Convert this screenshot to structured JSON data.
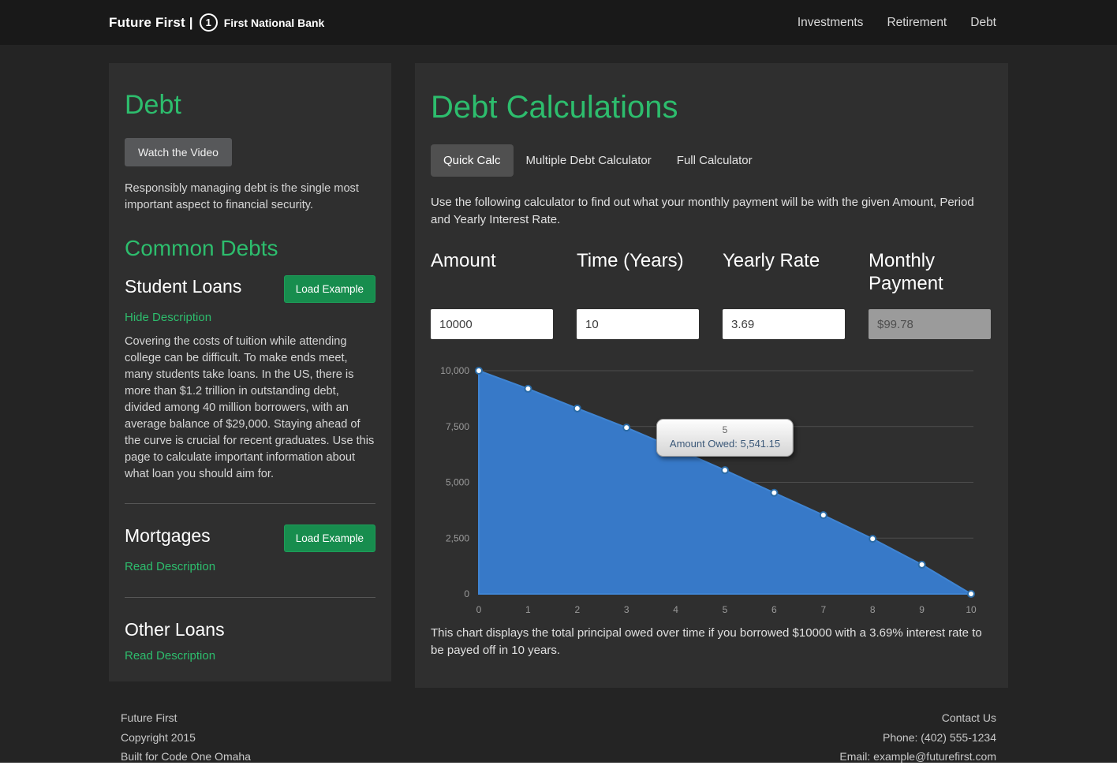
{
  "nav": {
    "brand_text": "Future First |",
    "logo_number": "1",
    "bank_name": "First National Bank",
    "items": [
      {
        "label": "Investments"
      },
      {
        "label": "Retirement"
      },
      {
        "label": "Debt"
      }
    ]
  },
  "sidebar": {
    "title": "Debt",
    "watch_video": "Watch the Video",
    "intro": "Responsibly managing debt is the single most important aspect to financial security.",
    "common_debts": "Common Debts",
    "student_loans": {
      "title": "Student Loans",
      "load_example": "Load Example",
      "toggle": "Hide Description",
      "description": "Covering the costs of tuition while attending college can be difficult. To make ends meet, many students take loans. In the US, there is more than $1.2 trillion in outstanding debt, divided among 40 million borrowers, with an average balance of $29,000. Staying ahead of the curve is crucial for recent graduates. Use this page to calculate important information about what loan you should aim for."
    },
    "mortgages": {
      "title": "Mortgages",
      "load_example": "Load Example",
      "toggle": "Read Description"
    },
    "other_loans": {
      "title": "Other Loans",
      "toggle": "Read Description"
    }
  },
  "main": {
    "title": "Debt Calculations",
    "tabs": [
      {
        "label": "Quick Calc",
        "active": true
      },
      {
        "label": "Multiple Debt Calculator",
        "active": false
      },
      {
        "label": "Full Calculator",
        "active": false
      }
    ],
    "instructions": "Use the following calculator to find out what your monthly payment will be with the given Amount, Period and Yearly Interest Rate.",
    "fields": {
      "amount": {
        "label": "Amount",
        "value": "10000"
      },
      "time": {
        "label": "Time (Years)",
        "value": "10"
      },
      "rate": {
        "label": "Yearly Rate",
        "value": "3.69"
      },
      "payment": {
        "label": "Monthly Payment",
        "value": "$99.78"
      }
    },
    "caption": "This chart displays the total principal owed over time if you borrowed $10000 with a 3.69% interest rate to be payed off in 10 years."
  },
  "chart_data": {
    "type": "area",
    "title": "",
    "xlabel": "",
    "ylabel": "",
    "x": [
      0,
      1,
      2,
      3,
      4,
      5,
      6,
      7,
      8,
      9,
      10
    ],
    "series": [
      {
        "name": "Amount Owed",
        "values": [
          10000,
          9190,
          8310,
          7450,
          6510,
          5541.15,
          4530,
          3530,
          2470,
          1310,
          0
        ]
      }
    ],
    "ylim": [
      0,
      10000
    ],
    "xlim": [
      0,
      10
    ],
    "yticks": [
      0,
      2500,
      5000,
      7500,
      10000
    ],
    "ytick_labels": [
      "0",
      "2,500",
      "5,000",
      "7,500",
      "10,000"
    ],
    "xtick_labels": [
      "0",
      "1",
      "2",
      "3",
      "4",
      "5",
      "6",
      "7",
      "8",
      "9",
      "10"
    ],
    "grid": true,
    "legend": "none",
    "fill_color": "#3779c8",
    "line_color": "#3f84d2",
    "point_fill": "#ffffff",
    "point_stroke": "#2b6ca8",
    "tooltip": {
      "title": "5",
      "text": "Amount Owed: 5,541.15",
      "x": 5,
      "y": 5541.15
    }
  },
  "footer": {
    "left": [
      "Future First",
      "Copyright 2015",
      "Built for Code One Omaha"
    ],
    "right": [
      "Contact Us",
      "Phone: (402) 555-1234",
      "Email: example@futurefirst.com"
    ]
  },
  "colors": {
    "accent_green": "#2dbd6d",
    "button_green": "#178d4e",
    "chart_blue": "#3779c8",
    "panel_bg": "#2f2f2f",
    "page_bg": "#242424",
    "nav_bg": "#191919"
  }
}
